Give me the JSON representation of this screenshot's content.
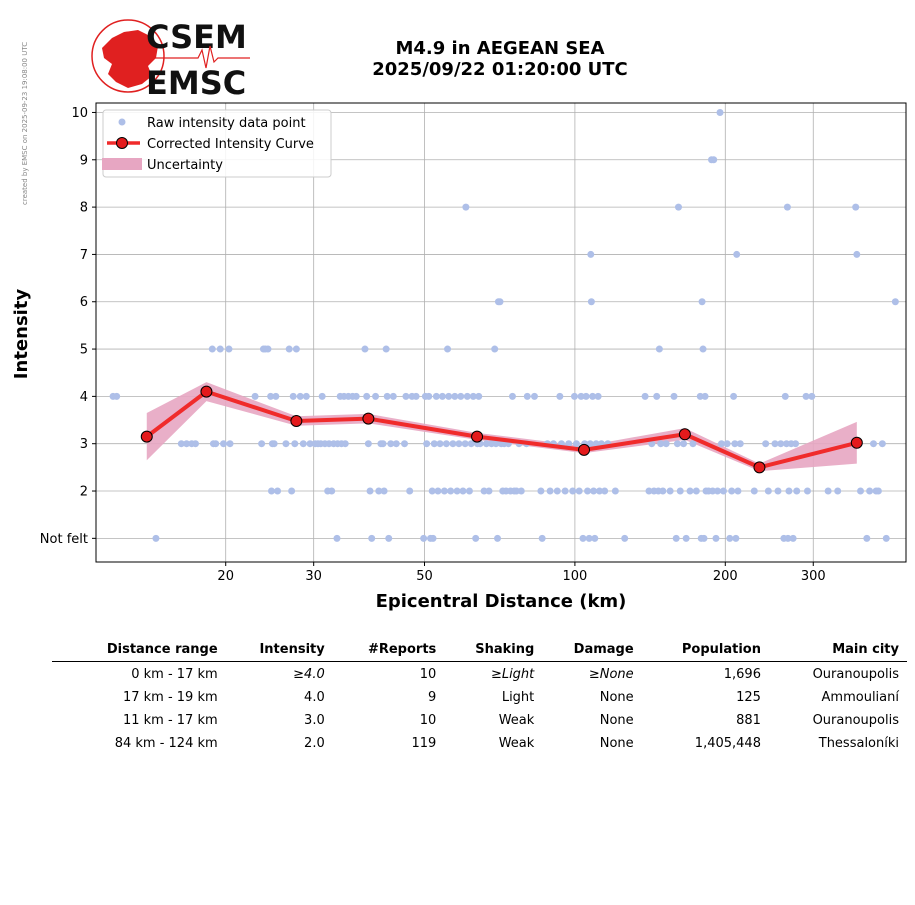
{
  "credit": "created by EMSC on 2025-09-23 19:08:00 UTC",
  "logo": {
    "line1": "CSEM",
    "line2": "EMSC",
    "color": "#e02020"
  },
  "title": {
    "line1": "M4.9 in AEGEAN SEA",
    "line2": "2025/09/22 01:20:00 UTC"
  },
  "chart_data": {
    "type": "scatter",
    "xlabel": "Epicentral Distance (km)",
    "ylabel": "Intensity",
    "x_scale": "log",
    "xlim": [
      11,
      460
    ],
    "ylim": [
      0.5,
      10.2
    ],
    "x_ticks": [
      20,
      30,
      50,
      100,
      200,
      300
    ],
    "y_ticks": [
      {
        "v": 1,
        "label": "Not felt"
      },
      {
        "v": 2,
        "label": "2"
      },
      {
        "v": 3,
        "label": "3"
      },
      {
        "v": 4,
        "label": "4"
      },
      {
        "v": 5,
        "label": "5"
      },
      {
        "v": 6,
        "label": "6"
      },
      {
        "v": 7,
        "label": "7"
      },
      {
        "v": 8,
        "label": "8"
      },
      {
        "v": 9,
        "label": "9"
      },
      {
        "v": 10,
        "label": "10"
      }
    ],
    "grid": true,
    "legend_position": "top-left",
    "colors": {
      "raw": "#aebfe8",
      "curve": "#f02b2b",
      "marker": "#e41a1c",
      "band": "#e7a6c2",
      "grid": "#b0b0b0"
    },
    "series": [
      {
        "name": "Raw intensity data point",
        "kind": "points",
        "points": [
          [
            11.9,
            4
          ],
          [
            12.1,
            4
          ],
          [
            14.5,
            1
          ],
          [
            16.3,
            3
          ],
          [
            16.7,
            3
          ],
          [
            17.1,
            3
          ],
          [
            17.4,
            3
          ],
          [
            18.8,
            5
          ],
          [
            19.5,
            5
          ],
          [
            20.3,
            5
          ],
          [
            18.9,
            3
          ],
          [
            19.1,
            3
          ],
          [
            19.8,
            3
          ],
          [
            20.4,
            3
          ],
          [
            22.9,
            4
          ],
          [
            23.6,
            3
          ],
          [
            23.8,
            5
          ],
          [
            24.0,
            5
          ],
          [
            24.3,
            5
          ],
          [
            24.6,
            4
          ],
          [
            24.7,
            2
          ],
          [
            24.8,
            3
          ],
          [
            25.0,
            3
          ],
          [
            25.2,
            4
          ],
          [
            25.4,
            2
          ],
          [
            26.4,
            3
          ],
          [
            26.8,
            5
          ],
          [
            27.1,
            2
          ],
          [
            27.3,
            4
          ],
          [
            27.5,
            3
          ],
          [
            27.7,
            5
          ],
          [
            28.2,
            4
          ],
          [
            28.6,
            3
          ],
          [
            29.0,
            4
          ],
          [
            29.5,
            3
          ],
          [
            30.2,
            3
          ],
          [
            30.6,
            3
          ],
          [
            31.0,
            3
          ],
          [
            31.6,
            3
          ],
          [
            32.2,
            3
          ],
          [
            32.9,
            3
          ],
          [
            33.5,
            3
          ],
          [
            34.1,
            3
          ],
          [
            34.7,
            3
          ],
          [
            31.2,
            4
          ],
          [
            32.0,
            2
          ],
          [
            32.6,
            2
          ],
          [
            33.4,
            1
          ],
          [
            33.9,
            4
          ],
          [
            34.5,
            4
          ],
          [
            35.2,
            4
          ],
          [
            35.9,
            4
          ],
          [
            36.5,
            4
          ],
          [
            38.0,
            5
          ],
          [
            38.3,
            4
          ],
          [
            38.6,
            3
          ],
          [
            38.9,
            2
          ],
          [
            39.2,
            1
          ],
          [
            39.9,
            4
          ],
          [
            40.5,
            2
          ],
          [
            40.9,
            3
          ],
          [
            41.3,
            3
          ],
          [
            41.5,
            2
          ],
          [
            41.9,
            5
          ],
          [
            42.1,
            4
          ],
          [
            42.4,
            1
          ],
          [
            42.8,
            3
          ],
          [
            43.3,
            4
          ],
          [
            43.9,
            3
          ],
          [
            45.6,
            3
          ],
          [
            45.9,
            4
          ],
          [
            46.7,
            2
          ],
          [
            47.2,
            4
          ],
          [
            48.1,
            4
          ],
          [
            49.8,
            1
          ],
          [
            50.2,
            4
          ],
          [
            50.5,
            3
          ],
          [
            51.0,
            4
          ],
          [
            51.4,
            1
          ],
          [
            51.8,
            2
          ],
          [
            52.0,
            1
          ],
          [
            52.3,
            3
          ],
          [
            52.8,
            4
          ],
          [
            53.2,
            2
          ],
          [
            53.7,
            3
          ],
          [
            54.3,
            4
          ],
          [
            54.8,
            2
          ],
          [
            55.3,
            3
          ],
          [
            55.6,
            5
          ],
          [
            55.9,
            4
          ],
          [
            56.4,
            2
          ],
          [
            57.0,
            3
          ],
          [
            57.5,
            4
          ],
          [
            58.1,
            2
          ],
          [
            58.6,
            3
          ],
          [
            59.1,
            4
          ],
          [
            59.7,
            2
          ],
          [
            60.3,
            3
          ],
          [
            60.9,
            4
          ],
          [
            61.5,
            2
          ],
          [
            62.0,
            3
          ],
          [
            62.6,
            4
          ],
          [
            63.3,
            1
          ],
          [
            63.8,
            3
          ],
          [
            64.2,
            4
          ],
          [
            64.6,
            3
          ],
          [
            65.8,
            2
          ],
          [
            66.5,
            3
          ],
          [
            67.3,
            2
          ],
          [
            68.1,
            3
          ],
          [
            69.1,
            5
          ],
          [
            69.5,
            3
          ],
          [
            70.0,
            1
          ],
          [
            70.3,
            6
          ],
          [
            70.8,
            6
          ],
          [
            71.2,
            3
          ],
          [
            71.7,
            2
          ],
          [
            72.2,
            3
          ],
          [
            72.8,
            2
          ],
          [
            73.6,
            3
          ],
          [
            74.3,
            2
          ],
          [
            75.0,
            4
          ],
          [
            75.6,
            2
          ],
          [
            76.4,
            2
          ],
          [
            77.3,
            3
          ],
          [
            78.1,
            2
          ],
          [
            80.0,
            3
          ],
          [
            80.3,
            4
          ],
          [
            83.0,
            4
          ],
          [
            85.5,
            2
          ],
          [
            86.0,
            1
          ],
          [
            88.1,
            3
          ],
          [
            89.2,
            2
          ],
          [
            90.6,
            3
          ],
          [
            92.2,
            2
          ],
          [
            93.3,
            4
          ],
          [
            94.0,
            3
          ],
          [
            95.6,
            2
          ],
          [
            97.2,
            3
          ],
          [
            99.0,
            2
          ],
          [
            99.8,
            4
          ],
          [
            100.7,
            3
          ],
          [
            102.0,
            2
          ],
          [
            102.9,
            4
          ],
          [
            103.8,
            1
          ],
          [
            104.6,
            3
          ],
          [
            105.3,
            4
          ],
          [
            106.0,
            2
          ],
          [
            106.8,
            1
          ],
          [
            107.3,
            3
          ],
          [
            107.6,
            7
          ],
          [
            107.9,
            6
          ],
          [
            108.5,
            4
          ],
          [
            109.0,
            2
          ],
          [
            109.6,
            1
          ],
          [
            110.3,
            3
          ],
          [
            111.3,
            4
          ],
          [
            112.0,
            2
          ],
          [
            113.0,
            3
          ],
          [
            114.7,
            2
          ],
          [
            116.4,
            3
          ],
          [
            120.5,
            2
          ],
          [
            125.8,
            1
          ],
          [
            138.2,
            4
          ],
          [
            140.7,
            2
          ],
          [
            142.5,
            3
          ],
          [
            144.0,
            2
          ],
          [
            145.8,
            4
          ],
          [
            146.9,
            2
          ],
          [
            147.6,
            5
          ],
          [
            148.5,
            3
          ],
          [
            150.0,
            2
          ],
          [
            152.3,
            3
          ],
          [
            155.1,
            2
          ],
          [
            157.9,
            4
          ],
          [
            159.5,
            1
          ],
          [
            160.4,
            3
          ],
          [
            161.2,
            8
          ],
          [
            162.5,
            2
          ],
          [
            165.0,
            3
          ],
          [
            167.0,
            1
          ],
          [
            170.0,
            2
          ],
          [
            172.3,
            3
          ],
          [
            175.0,
            2
          ],
          [
            178.2,
            4
          ],
          [
            179.0,
            1
          ],
          [
            179.7,
            6
          ],
          [
            180.5,
            5
          ],
          [
            181.3,
            1
          ],
          [
            182.2,
            4
          ],
          [
            183.0,
            2
          ],
          [
            185.2,
            2
          ],
          [
            187.7,
            9
          ],
          [
            188.7,
            2
          ],
          [
            189.6,
            9
          ],
          [
            191.6,
            1
          ],
          [
            193.0,
            2
          ],
          [
            195.2,
            10
          ],
          [
            196.5,
            3
          ],
          [
            198.3,
            2
          ],
          [
            201.7,
            3
          ],
          [
            204.2,
            1
          ],
          [
            206.0,
            2
          ],
          [
            207.8,
            4
          ],
          [
            209.0,
            3
          ],
          [
            210.0,
            1
          ],
          [
            210.8,
            7
          ],
          [
            212.0,
            2
          ],
          [
            214.3,
            3
          ],
          [
            228.6,
            2
          ],
          [
            240.9,
            3
          ],
          [
            243.9,
            2
          ],
          [
            251.5,
            3
          ],
          [
            255.0,
            2
          ],
          [
            258.3,
            3
          ],
          [
            262.0,
            1
          ],
          [
            263.7,
            4
          ],
          [
            265.2,
            3
          ],
          [
            266.3,
            8
          ],
          [
            267.0,
            1
          ],
          [
            268.2,
            2
          ],
          [
            271.0,
            3
          ],
          [
            273.4,
            1
          ],
          [
            276.5,
            3
          ],
          [
            278.0,
            2
          ],
          [
            290.2,
            4
          ],
          [
            292.1,
            2
          ],
          [
            298.0,
            4
          ],
          [
            321.3,
            2
          ],
          [
            335.8,
            2
          ],
          [
            364.8,
            8
          ],
          [
            366.7,
            7
          ],
          [
            373.0,
            2
          ],
          [
            384.0,
            1
          ],
          [
            389.0,
            2
          ],
          [
            396.0,
            3
          ],
          [
            400.8,
            2
          ],
          [
            405.0,
            2
          ],
          [
            412.5,
            3
          ],
          [
            420.0,
            1
          ],
          [
            438.0,
            6
          ],
          [
            60.5,
            8
          ]
        ]
      },
      {
        "name": "Corrected Intensity Curve",
        "kind": "line",
        "x": [
          13.9,
          18.3,
          27.7,
          38.6,
          63.7,
          104.3,
          166.0,
          234.1,
          366.7
        ],
        "y": [
          3.15,
          4.1,
          3.48,
          3.53,
          3.15,
          2.87,
          3.2,
          2.5,
          3.02
        ]
      },
      {
        "name": "Uncertainty",
        "kind": "band",
        "x": [
          13.9,
          18.3,
          27.7,
          38.6,
          63.7,
          104.3,
          166.0,
          234.1,
          366.7
        ],
        "y_low": [
          2.65,
          3.9,
          3.38,
          3.43,
          3.08,
          2.8,
          3.08,
          2.42,
          2.58
        ],
        "y_high": [
          3.65,
          4.3,
          3.58,
          3.63,
          3.23,
          2.95,
          3.33,
          2.58,
          3.46
        ]
      }
    ]
  },
  "table": {
    "headers": [
      "Distance range",
      "Intensity",
      "#Reports",
      "Shaking",
      "Damage",
      "Population",
      "Main city"
    ],
    "rows": [
      {
        "range": "0 km -   17 km",
        "intensity": "≥4.0",
        "reports": "10",
        "shaking": "≥Light",
        "damage": "≥None",
        "population": "1,696",
        "city": "Ouranoupolis",
        "italic": true
      },
      {
        "range": "17 km -   19 km",
        "intensity": "4.0",
        "reports": "9",
        "shaking": "Light",
        "damage": "None",
        "population": "125",
        "city": "Ammoulianí",
        "italic": false
      },
      {
        "range": "11 km -   17 km",
        "intensity": "3.0",
        "reports": "10",
        "shaking": "Weak",
        "damage": "None",
        "population": "881",
        "city": "Ouranoupolis",
        "italic": false
      },
      {
        "range": "84 km -  124 km",
        "intensity": "2.0",
        "reports": "119",
        "shaking": "Weak",
        "damage": "None",
        "population": "1,405,448",
        "city": "Thessaloníki",
        "italic": false
      }
    ]
  }
}
